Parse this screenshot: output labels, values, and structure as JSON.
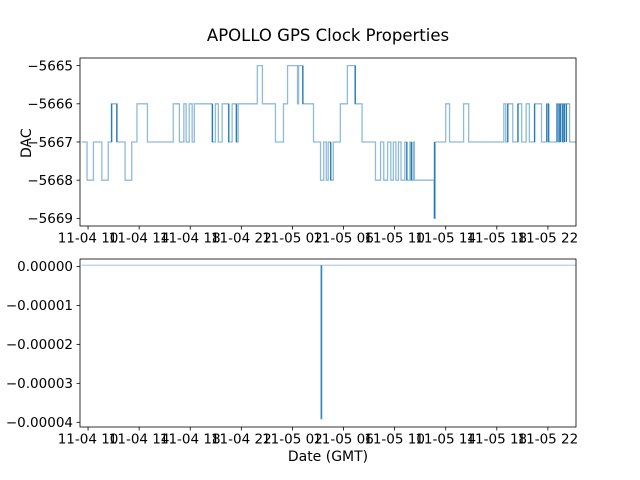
{
  "figure": {
    "title": "APOLLO GPS Clock Properties",
    "background_color": "#ffffff",
    "line_color": "#1f77b4"
  },
  "chart_data": [
    {
      "type": "line",
      "subplot": "top",
      "drawstyle": "steps-post",
      "ylabel": "DAC",
      "xlabel": "",
      "line_color": "#1f77b4",
      "line_alpha": 0.5,
      "dark_alpha": 0.95,
      "x_unit": "hours since 11-04 00:00 GMT",
      "xlim": [
        9.37,
        48.2
      ],
      "ylim": [
        -5669.2,
        -5664.8
      ],
      "yticks": [
        -5665,
        -5666,
        -5667,
        -5668,
        -5669
      ],
      "ytick_labels": [
        "−5665",
        "−5666",
        "−5667",
        "−5668",
        "−5669"
      ],
      "xticks": [
        10,
        14,
        18,
        22,
        26,
        30,
        34,
        38,
        42,
        46
      ],
      "xtick_labels": [
        "11-04 10",
        "11-04 14",
        "11-04 18",
        "11-04 22",
        "11-05 02",
        "11-05 06",
        "11-05 10",
        "11-05 14",
        "11-05 18",
        "11-05 22"
      ],
      "grid": false,
      "legend": null,
      "steps": [
        [
          9.5,
          -5667
        ],
        [
          9.92,
          -5668
        ],
        [
          10.42,
          -5667
        ],
        [
          11.08,
          -5668
        ],
        [
          11.58,
          -5667
        ],
        [
          11.83,
          -5666
        ],
        [
          12.27,
          -5667
        ],
        [
          12.9,
          -5668
        ],
        [
          13.42,
          -5667
        ],
        [
          13.83,
          -5666
        ],
        [
          14.65,
          -5667
        ],
        [
          16.67,
          -5666
        ],
        [
          17.15,
          -5667
        ],
        [
          17.5,
          -5666
        ],
        [
          17.68,
          -5667
        ],
        [
          17.92,
          -5666
        ],
        [
          18.15,
          -5667
        ],
        [
          18.32,
          -5666
        ],
        [
          19.72,
          -5667
        ],
        [
          19.97,
          -5666
        ],
        [
          20.2,
          -5667
        ],
        [
          20.5,
          -5666
        ],
        [
          21.0,
          -5667
        ],
        [
          21.28,
          -5666
        ],
        [
          21.6,
          -5667
        ],
        [
          21.75,
          -5666
        ],
        [
          23.25,
          -5665
        ],
        [
          23.65,
          -5666
        ],
        [
          24.67,
          -5667
        ],
        [
          25.3,
          -5666
        ],
        [
          25.62,
          -5665
        ],
        [
          26.4,
          -5666
        ],
        [
          26.48,
          -5665
        ],
        [
          26.8,
          -5666
        ],
        [
          27.65,
          -5667
        ],
        [
          28.2,
          -5668
        ],
        [
          28.45,
          -5667
        ],
        [
          28.65,
          -5668
        ],
        [
          28.8,
          -5667
        ],
        [
          29.0,
          -5668
        ],
        [
          29.2,
          -5667
        ],
        [
          29.75,
          -5666
        ],
        [
          30.3,
          -5665
        ],
        [
          30.9,
          -5666
        ],
        [
          31.45,
          -5667
        ],
        [
          32.5,
          -5668
        ],
        [
          32.9,
          -5667
        ],
        [
          33.15,
          -5668
        ],
        [
          33.45,
          -5667
        ],
        [
          33.7,
          -5668
        ],
        [
          33.9,
          -5667
        ],
        [
          34.1,
          -5668
        ],
        [
          34.3,
          -5667
        ],
        [
          34.5,
          -5668
        ],
        [
          34.8,
          -5667
        ],
        [
          34.95,
          -5668
        ],
        [
          35.2,
          -5667
        ],
        [
          35.3,
          -5668
        ],
        [
          35.45,
          -5667
        ],
        [
          35.55,
          -5668
        ],
        [
          37.1,
          -5669
        ],
        [
          37.18,
          -5667
        ],
        [
          38.0,
          -5666
        ],
        [
          38.3,
          -5667
        ],
        [
          39.4,
          -5666
        ],
        [
          39.8,
          -5667
        ],
        [
          42.55,
          -5666
        ],
        [
          42.7,
          -5667
        ],
        [
          42.85,
          -5666
        ],
        [
          43.25,
          -5667
        ],
        [
          43.65,
          -5666
        ],
        [
          43.95,
          -5667
        ],
        [
          44.3,
          -5666
        ],
        [
          44.55,
          -5667
        ],
        [
          44.95,
          -5666
        ],
        [
          45.5,
          -5667
        ],
        [
          45.9,
          -5666
        ],
        [
          46.05,
          -5667
        ],
        [
          46.7,
          -5666
        ],
        [
          46.85,
          -5667
        ],
        [
          46.95,
          -5666
        ],
        [
          47.15,
          -5667
        ],
        [
          47.25,
          -5666
        ],
        [
          47.7,
          -5667
        ]
      ],
      "dark_segments": [
        [
          11.85,
          -5666,
          -5667
        ],
        [
          12.25,
          -5666,
          -5667
        ],
        [
          19.74,
          -5666,
          -5667
        ],
        [
          21.02,
          -5666,
          -5667
        ],
        [
          21.62,
          -5666,
          -5667
        ],
        [
          26.82,
          -5665,
          -5666
        ],
        [
          29.0,
          -5667,
          -5668
        ],
        [
          30.92,
          -5665,
          -5666
        ],
        [
          34.96,
          -5667,
          -5668
        ],
        [
          35.32,
          -5667,
          -5668
        ],
        [
          37.12,
          -5667,
          -5669
        ],
        [
          42.86,
          -5666,
          -5667
        ],
        [
          43.66,
          -5666,
          -5667
        ],
        [
          44.96,
          -5666,
          -5667
        ],
        [
          45.92,
          -5666,
          -5667
        ],
        [
          46.06,
          -5666,
          -5667
        ],
        [
          46.72,
          -5666,
          -5667
        ],
        [
          46.88,
          -5666,
          -5667
        ],
        [
          47.0,
          -5666,
          -5667
        ],
        [
          47.16,
          -5666,
          -5667
        ],
        [
          47.3,
          -5666,
          -5667
        ],
        [
          47.45,
          -5666,
          -5667
        ]
      ]
    },
    {
      "type": "line",
      "subplot": "bottom",
      "drawstyle": "steps-post",
      "ylabel": "",
      "xlabel": "Date (GMT)",
      "line_color": "#1f77b4",
      "line_alpha": 0.35,
      "dark_alpha": 0.85,
      "x_unit": "hours since 11-04 00:00 GMT",
      "xlim": [
        9.37,
        48.2
      ],
      "ylim": [
        -4.12e-05,
        1.9e-06
      ],
      "yticks": [
        0,
        -1e-05,
        -2e-05,
        -3e-05,
        -4e-05
      ],
      "ytick_labels": [
        "0.00000",
        "−0.00001",
        "−0.00002",
        "−0.00003",
        "−0.00004"
      ],
      "xticks": [
        10,
        14,
        18,
        22,
        26,
        30,
        34,
        38,
        42,
        46
      ],
      "xtick_labels": [
        "11-04 10",
        "11-04 14",
        "11-04 18",
        "11-04 22",
        "11-05 02",
        "11-05 06",
        "11-05 10",
        "11-05 14",
        "11-05 18",
        "11-05 22"
      ],
      "grid": false,
      "legend": null,
      "steps": [
        [
          9.5,
          3e-07
        ],
        [
          28.24,
          -3.91e-05
        ],
        [
          28.32,
          3e-07
        ]
      ],
      "dark_segments": [
        [
          28.26,
          3e-07,
          -3.91e-05
        ]
      ]
    }
  ]
}
